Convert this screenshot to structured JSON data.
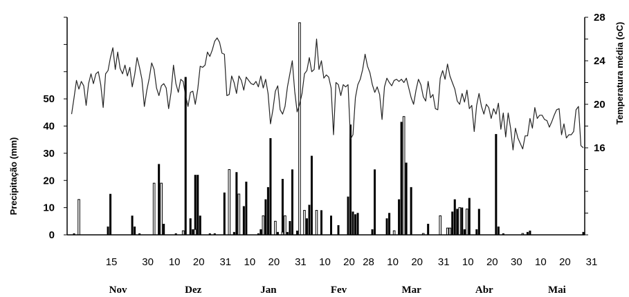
{
  "chart_data": {
    "type": "bar+line",
    "left_axis": {
      "title": "Precipitação (mm)",
      "range": [
        0,
        80
      ],
      "ticks": [
        0,
        10,
        20,
        30,
        40,
        50
      ]
    },
    "right_axis": {
      "title": "Temperatura média (oC)",
      "range": [
        8,
        28
      ],
      "ticks": [
        16,
        20,
        24,
        28
      ]
    },
    "x_range": [
      0,
      212
    ],
    "x_tick_labels": [
      {
        "label": "15",
        "x": 14
      },
      {
        "label": "30",
        "x": 29
      },
      {
        "label": "10",
        "x": 40
      },
      {
        "label": "20",
        "x": 50
      },
      {
        "label": "31",
        "x": 61
      },
      {
        "label": "10",
        "x": 71
      },
      {
        "label": "20",
        "x": 81
      },
      {
        "label": "31",
        "x": 92
      },
      {
        "label": "10",
        "x": 102
      },
      {
        "label": "20",
        "x": 112
      },
      {
        "label": "28",
        "x": 120
      },
      {
        "label": "10",
        "x": 130
      },
      {
        "label": "20",
        "x": 140
      },
      {
        "label": "31",
        "x": 151
      },
      {
        "label": "10",
        "x": 161
      },
      {
        "label": "20",
        "x": 171
      },
      {
        "label": "30",
        "x": 181
      },
      {
        "label": "10",
        "x": 191
      },
      {
        "label": "20",
        "x": 201
      },
      {
        "label": "31",
        "x": 212
      }
    ],
    "months": [
      {
        "label": "Nov",
        "x": 15
      },
      {
        "label": "Dez",
        "x": 46
      },
      {
        "label": "Jan",
        "x": 77
      },
      {
        "label": "Fev",
        "x": 106
      },
      {
        "label": "Mar",
        "x": 136
      },
      {
        "label": "Abr",
        "x": 166
      },
      {
        "label": "Mai",
        "x": 196
      }
    ],
    "precipitation_series": [
      {
        "name": "filled",
        "points": [
          [
            2,
            0.5
          ],
          [
            16,
            3
          ],
          [
            17,
            15
          ],
          [
            26,
            7
          ],
          [
            27,
            3
          ],
          [
            29,
            0.5
          ],
          [
            37,
            26
          ],
          [
            39,
            4
          ],
          [
            44,
            0.5
          ],
          [
            48,
            58
          ],
          [
            50,
            6
          ],
          [
            51,
            2
          ],
          [
            52,
            22
          ],
          [
            53,
            22
          ],
          [
            54,
            7
          ],
          [
            58,
            0.5
          ],
          [
            60,
            0.5
          ],
          [
            64,
            15.5
          ],
          [
            68,
            1
          ],
          [
            69,
            23
          ],
          [
            72,
            10.5
          ],
          [
            73,
            19.5
          ],
          [
            78,
            0.5
          ],
          [
            79,
            2
          ],
          [
            81,
            13
          ],
          [
            82,
            17.5
          ],
          [
            83,
            35.5
          ],
          [
            86,
            1
          ],
          [
            88,
            20.5
          ],
          [
            90,
            1
          ],
          [
            91,
            5
          ],
          [
            92,
            24
          ],
          [
            94,
            1.5
          ],
          [
            98,
            6
          ],
          [
            99,
            11
          ],
          [
            100,
            29
          ],
          [
            102,
            0.5
          ],
          [
            104,
            9
          ],
          [
            108,
            7
          ],
          [
            111,
            3.5
          ],
          [
            115,
            14
          ],
          [
            116,
            40.5
          ],
          [
            117,
            8.5
          ],
          [
            118,
            7.5
          ],
          [
            119,
            8
          ],
          [
            125,
            2
          ],
          [
            126,
            24
          ],
          [
            131,
            6
          ],
          [
            132,
            8
          ],
          [
            136,
            13
          ],
          [
            137,
            41.5
          ],
          [
            139,
            26.5
          ],
          [
            141,
            17.5
          ],
          [
            148,
            4
          ],
          [
            158,
            8.5
          ],
          [
            159,
            13
          ],
          [
            160,
            9.5
          ],
          [
            162,
            10
          ],
          [
            163,
            2
          ],
          [
            165,
            13.5
          ],
          [
            168,
            2
          ],
          [
            169,
            9.5
          ],
          [
            176,
            37
          ],
          [
            177,
            3
          ],
          [
            179,
            0.5
          ],
          [
            189,
            1
          ],
          [
            190,
            1.5
          ],
          [
            212,
            1
          ]
        ]
      },
      {
        "name": "open",
        "points": [
          [
            4,
            13
          ],
          [
            35,
            19
          ],
          [
            38,
            19
          ],
          [
            47,
            1.5
          ],
          [
            52,
            2
          ],
          [
            66,
            24
          ],
          [
            70,
            15
          ],
          [
            80,
            7
          ],
          [
            85,
            5
          ],
          [
            88,
            1
          ],
          [
            89,
            7
          ],
          [
            95,
            78
          ],
          [
            97,
            9
          ],
          [
            102,
            9
          ],
          [
            134,
            1.5
          ],
          [
            138,
            43.5
          ],
          [
            146,
            0.5
          ],
          [
            153,
            7
          ],
          [
            156,
            2.5
          ],
          [
            157,
            2.5
          ],
          [
            161,
            10
          ],
          [
            164,
            9.5
          ],
          [
            187,
            0.5
          ]
        ]
      }
    ],
    "temperature_series": {
      "name": "Temperatura média",
      "points": [
        [
          1,
          19.1
        ],
        [
          2,
          20.6
        ],
        [
          3,
          22.2
        ],
        [
          4,
          21.4
        ],
        [
          5,
          22.1
        ],
        [
          6,
          21.7
        ],
        [
          7,
          19.9
        ],
        [
          8,
          21.9
        ],
        [
          9,
          22.8
        ],
        [
          10,
          21.9
        ],
        [
          11,
          22.8
        ],
        [
          12,
          23.0
        ],
        [
          13,
          21.8
        ],
        [
          14,
          19.7
        ],
        [
          15,
          22.8
        ],
        [
          16,
          23.1
        ],
        [
          17,
          24.3
        ],
        [
          18,
          25.2
        ],
        [
          19,
          23.2
        ],
        [
          20,
          24.8
        ],
        [
          21,
          23.3
        ],
        [
          22,
          22.8
        ],
        [
          23,
          23.6
        ],
        [
          24,
          22.6
        ],
        [
          25,
          23.4
        ],
        [
          26,
          21.6
        ],
        [
          27,
          22.7
        ],
        [
          28,
          24.3
        ],
        [
          29,
          23.4
        ],
        [
          30,
          22.3
        ],
        [
          31,
          19.8
        ],
        [
          32,
          21.3
        ],
        [
          33,
          22.4
        ],
        [
          34,
          23.8
        ],
        [
          35,
          23.2
        ],
        [
          36,
          21.5
        ],
        [
          37,
          20.8
        ],
        [
          38,
          21.7
        ],
        [
          39,
          21.9
        ],
        [
          40,
          21.5
        ],
        [
          41,
          19.6
        ],
        [
          42,
          21.1
        ],
        [
          43,
          23.6
        ],
        [
          44,
          21.9
        ],
        [
          45,
          21.1
        ],
        [
          46,
          22.3
        ],
        [
          47,
          22.1
        ],
        [
          48,
          20.8
        ],
        [
          49,
          19.8
        ],
        [
          50,
          21.1
        ],
        [
          51,
          21.2
        ],
        [
          52,
          20.0
        ],
        [
          53,
          21.4
        ],
        [
          54,
          23.5
        ],
        [
          55,
          23.4
        ],
        [
          56,
          23.6
        ],
        [
          57,
          24.8
        ],
        [
          58,
          24.4
        ],
        [
          59,
          25.0
        ],
        [
          60,
          25.8
        ],
        [
          61,
          26.1
        ],
        [
          62,
          25.7
        ],
        [
          63,
          24.7
        ],
        [
          64,
          24.6
        ],
        [
          65,
          20.8
        ],
        [
          66,
          20.9
        ],
        [
          67,
          22.6
        ],
        [
          68,
          22.0
        ],
        [
          69,
          21.0
        ],
        [
          70,
          22.6
        ],
        [
          71,
          22.2
        ],
        [
          72,
          21.3
        ],
        [
          73,
          22.5
        ],
        [
          74,
          22.2
        ],
        [
          75,
          21.9
        ],
        [
          76,
          21.8
        ],
        [
          77,
          22.1
        ],
        [
          78,
          21.6
        ],
        [
          79,
          22.6
        ],
        [
          80,
          21.5
        ],
        [
          81,
          22.3
        ],
        [
          82,
          21.0
        ],
        [
          83,
          18.2
        ],
        [
          84,
          19.5
        ],
        [
          85,
          21.2
        ],
        [
          86,
          21.7
        ],
        [
          87,
          19.5
        ],
        [
          88,
          19.1
        ],
        [
          89,
          19.8
        ],
        [
          90,
          21.6
        ],
        [
          91,
          22.8
        ],
        [
          92,
          24.0
        ],
        [
          93,
          21.2
        ],
        [
          94,
          19.3
        ],
        [
          95,
          20.0
        ],
        [
          96,
          21.0
        ],
        [
          97,
          22.8
        ],
        [
          98,
          23.1
        ],
        [
          99,
          24.3
        ],
        [
          100,
          23.0
        ],
        [
          101,
          23.2
        ],
        [
          102,
          26.0
        ],
        [
          103,
          23.2
        ],
        [
          104,
          24.0
        ],
        [
          105,
          22.4
        ],
        [
          106,
          22.7
        ],
        [
          107,
          22.5
        ],
        [
          108,
          21.5
        ],
        [
          109,
          17.2
        ],
        [
          110,
          22.0
        ],
        [
          111,
          21.8
        ],
        [
          112,
          20.8
        ],
        [
          113,
          21.8
        ],
        [
          114,
          21.6
        ],
        [
          115,
          21.8
        ],
        [
          116,
          16.8
        ],
        [
          117,
          17.2
        ],
        [
          118,
          20.6
        ],
        [
          119,
          21.8
        ],
        [
          120,
          22.3
        ],
        [
          121,
          23.2
        ],
        [
          122,
          24.6
        ],
        [
          123,
          23.5
        ],
        [
          124,
          22.9
        ],
        [
          125,
          21.8
        ],
        [
          126,
          21.1
        ],
        [
          127,
          21.6
        ],
        [
          128,
          20.9
        ],
        [
          129,
          18.6
        ],
        [
          130,
          21.6
        ],
        [
          131,
          22.4
        ],
        [
          132,
          22.0
        ],
        [
          133,
          21.7
        ],
        [
          134,
          22.2
        ],
        [
          135,
          22.3
        ],
        [
          136,
          22.1
        ],
        [
          137,
          22.3
        ],
        [
          138,
          22.0
        ],
        [
          139,
          22.4
        ],
        [
          140,
          21.5
        ],
        [
          141,
          20.6
        ],
        [
          142,
          20.0
        ],
        [
          143,
          21.3
        ],
        [
          144,
          22.3
        ],
        [
          145,
          21.8
        ],
        [
          146,
          20.7
        ],
        [
          147,
          20.3
        ],
        [
          148,
          22.1
        ],
        [
          149,
          20.6
        ],
        [
          150,
          20.9
        ],
        [
          151,
          19.6
        ],
        [
          152,
          19.5
        ],
        [
          153,
          22.4
        ],
        [
          154,
          23.1
        ],
        [
          155,
          22.3
        ],
        [
          156,
          23.7
        ],
        [
          157,
          22.6
        ],
        [
          158,
          22.0
        ],
        [
          159,
          21.4
        ],
        [
          160,
          20.3
        ],
        [
          161,
          20.0
        ],
        [
          162,
          21.0
        ],
        [
          163,
          20.2
        ],
        [
          164,
          21.3
        ],
        [
          165,
          19.6
        ],
        [
          166,
          19.9
        ],
        [
          167,
          17.5
        ],
        [
          168,
          19.9
        ],
        [
          169,
          21.0
        ],
        [
          170,
          19.8
        ],
        [
          171,
          19.1
        ],
        [
          172,
          20.0
        ],
        [
          173,
          19.7
        ],
        [
          174,
          18.7
        ],
        [
          175,
          19.6
        ],
        [
          176,
          19.1
        ],
        [
          177,
          20.1
        ],
        [
          178,
          17.7
        ],
        [
          179,
          19.2
        ],
        [
          180,
          17.0
        ],
        [
          181,
          19.2
        ],
        [
          182,
          17.8
        ],
        [
          183,
          15.8
        ],
        [
          184,
          17.8
        ],
        [
          185,
          16.9
        ],
        [
          186,
          16.4
        ],
        [
          187,
          15.9
        ],
        [
          188,
          17.1
        ],
        [
          189,
          17.1
        ],
        [
          190,
          18.7
        ],
        [
          191,
          17.8
        ],
        [
          192,
          19.7
        ],
        [
          193,
          18.7
        ],
        [
          194,
          19.0
        ],
        [
          195,
          19.0
        ],
        [
          196,
          18.6
        ],
        [
          197,
          18.5
        ],
        [
          198,
          17.9
        ],
        [
          199,
          18.4
        ],
        [
          200,
          19.0
        ],
        [
          201,
          19.5
        ],
        [
          202,
          19.6
        ],
        [
          203,
          17.2
        ],
        [
          204,
          18.2
        ],
        [
          205,
          16.9
        ],
        [
          206,
          17.2
        ],
        [
          207,
          17.2
        ],
        [
          208,
          17.5
        ],
        [
          209,
          19.5
        ],
        [
          210,
          19.8
        ],
        [
          211,
          16.2
        ],
        [
          212,
          16.0
        ]
      ]
    }
  }
}
